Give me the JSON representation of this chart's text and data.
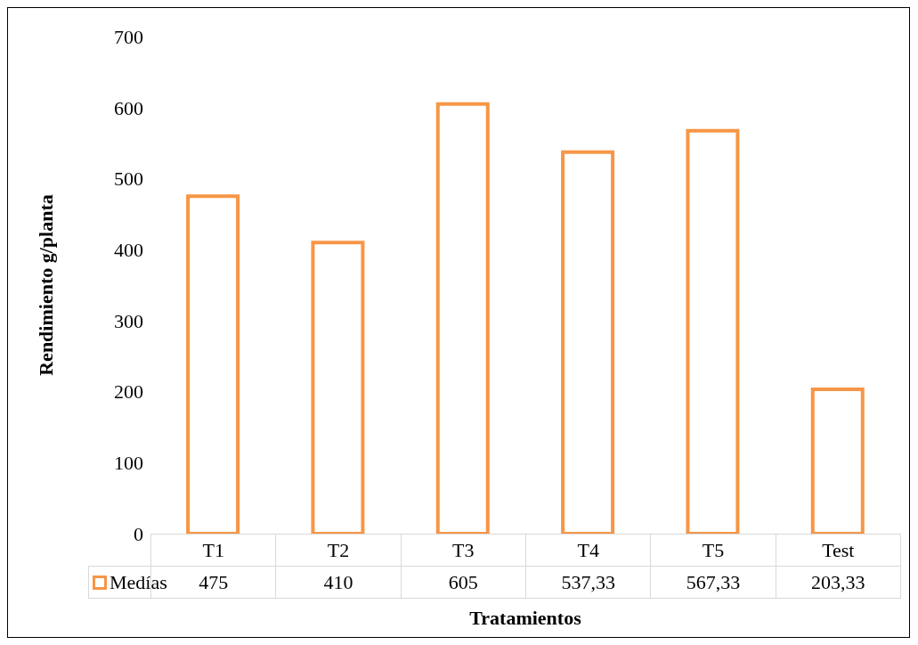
{
  "chart_data": {
    "type": "bar",
    "xlabel": "Tratamientos",
    "ylabel": "Rendimiento g/planta",
    "categories": [
      "T1",
      "T2",
      "T3",
      "T4",
      "T5",
      "Test"
    ],
    "series": [
      {
        "name": "Medías",
        "color": "#f79646",
        "values": [
          475,
          410,
          605,
          537.33,
          567.33,
          203.33
        ],
        "value_labels": [
          "475",
          "410",
          "605",
          "537,33",
          "567,33",
          "203,33"
        ]
      }
    ],
    "ylim": [
      0,
      700
    ],
    "yticks": [
      0,
      100,
      200,
      300,
      400,
      500,
      600,
      700
    ],
    "legend": "bottom"
  }
}
